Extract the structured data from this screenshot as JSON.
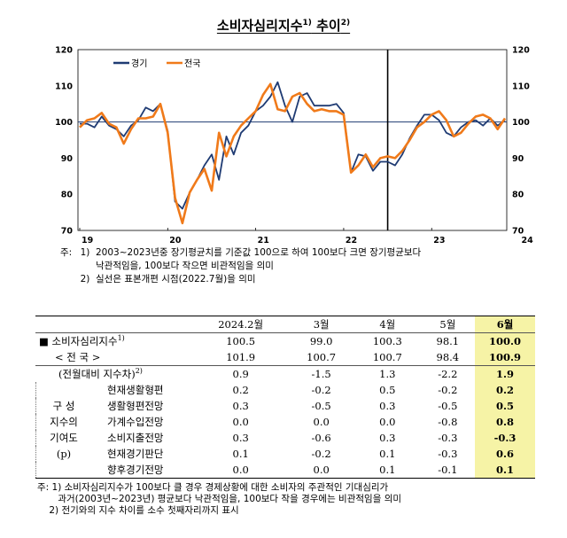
{
  "title": {
    "text": "소비자심리지수",
    "sup1": "1)",
    "suffix": " 추이",
    "sup2": "2)"
  },
  "chart_data": {
    "type": "line",
    "x_tick_labels": [
      "19",
      "20",
      "21",
      "22",
      "23",
      "24"
    ],
    "y_ticks": [
      "70",
      "80",
      "90",
      "100",
      "110",
      "120"
    ],
    "ylim": [
      70,
      120
    ],
    "reference_line": 100,
    "vertical_marker_label": "2022.7",
    "legend_position": "top-left",
    "series": [
      {
        "name": "경기",
        "color": "#1f3b73",
        "values": [
          99.5,
          99.5,
          98.5,
          101.5,
          99,
          98,
          96,
          99,
          100.5,
          104,
          103,
          105,
          97.5,
          78,
          76,
          80.5,
          84,
          88,
          91,
          84,
          96,
          91,
          97,
          99,
          103,
          104.5,
          107,
          111,
          104.5,
          100,
          107,
          108,
          104.5,
          104.5,
          104.5,
          105,
          102.5,
          86,
          91,
          90.5,
          86.5,
          89,
          89,
          88,
          91,
          95.5,
          99,
          102,
          102,
          100.5,
          97,
          96,
          98.5,
          100,
          100.5,
          99,
          101,
          99,
          100.5
        ]
      },
      {
        "name": "전국",
        "color": "#f07a1a",
        "values": [
          98.5,
          100.5,
          101,
          102.5,
          99.5,
          98.5,
          94,
          98,
          101,
          101,
          101.5,
          105,
          97,
          79,
          72,
          80.5,
          84,
          87,
          81,
          97,
          90.5,
          96,
          99,
          101,
          103,
          107.5,
          110.5,
          103.5,
          103,
          107,
          108,
          105,
          103,
          103.5,
          103,
          103,
          102,
          86,
          88,
          91,
          87.5,
          90,
          90.5,
          90,
          92,
          95,
          98.5,
          100,
          102,
          103,
          100.5,
          96,
          97,
          99.5,
          101.5,
          102,
          101,
          98,
          101
        ]
      }
    ]
  },
  "chart_notes": {
    "prefix": "주:",
    "n1": "1)",
    "n1_line1": "2003~2023년중 장기평균치를 기준값 100으로 하여 100보다 크면 장기평균보다",
    "n1_line2": "낙관적임을, 100보다 작으면 비관적임을 의미",
    "n2": "2)",
    "n2_line1": "실선은 표본개편 시점(2022.7월)을 의미"
  },
  "table": {
    "headers": [
      "2024.2월",
      "3월",
      "4월",
      "5월",
      "6월"
    ],
    "rows": [
      {
        "label": "■  소비자심리지수",
        "sup": "1)",
        "values": [
          "100.5",
          "99.0",
          "100.3",
          "98.1",
          "100.0"
        ]
      },
      {
        "label": "< 전    국 >",
        "sup": "",
        "values": [
          "101.9",
          "100.7",
          "100.7",
          "98.4",
          "100.9"
        ]
      },
      {
        "label": "(전월대비 지수차)",
        "sup": "2)",
        "values": [
          "0.9",
          "-1.5",
          "1.3",
          "-2.2",
          "1.9"
        ]
      }
    ],
    "group_label_lines": [
      "구   성",
      "지수의",
      "기여도",
      "(p)"
    ],
    "sub_rows": [
      {
        "label": "현재생활형편",
        "values": [
          "0.2",
          "-0.2",
          "0.5",
          "-0.2",
          "0.2"
        ]
      },
      {
        "label": "생활형편전망",
        "values": [
          "0.3",
          "-0.5",
          "0.3",
          "-0.5",
          "0.5"
        ]
      },
      {
        "label": "가계수입전망",
        "values": [
          "0.0",
          "0.0",
          "0.0",
          "-0.8",
          "0.8"
        ]
      },
      {
        "label": "소비지출전망",
        "values": [
          "0.3",
          "-0.6",
          "0.3",
          "-0.3",
          "-0.3"
        ]
      },
      {
        "label": "현재경기판단",
        "values": [
          "0.1",
          "-0.2",
          "0.1",
          "-0.3",
          "0.6"
        ]
      },
      {
        "label": "향후경기전망",
        "values": [
          "0.0",
          "0.0",
          "0.1",
          "-0.1",
          "0.1"
        ]
      }
    ]
  },
  "table_notes": {
    "n1_line1": "주: 1) 소비자심리지수가 100보다 클 경우 경제상황에 대한 소비자의 주관적인 기대심리가",
    "n1_line2": "       과거(2003년~2023년) 평균보다 낙관적임을, 100보다 작을 경우에는 비관적임을 의미",
    "n2_line1": "    2) 전기와의 지수 차이를 소수 첫째자리까지 표시"
  }
}
